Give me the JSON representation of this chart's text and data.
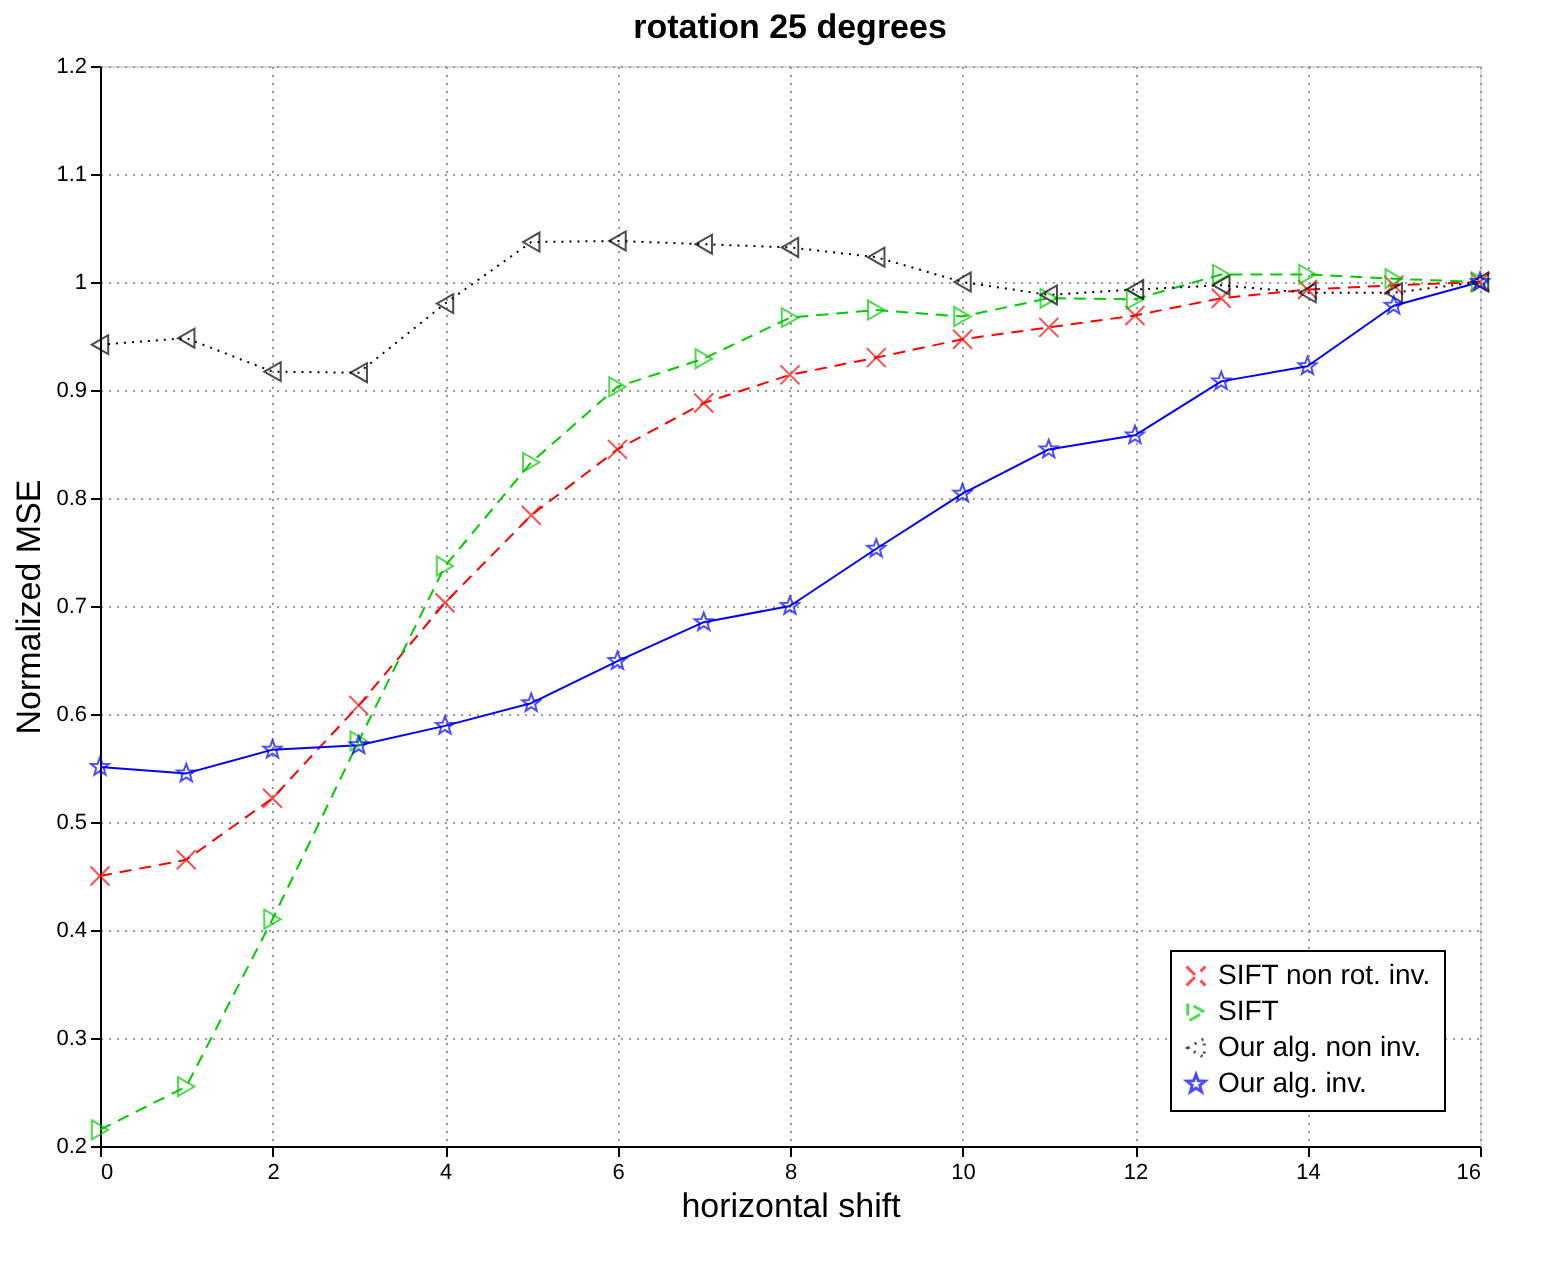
{
  "chart_data": {
    "type": "line",
    "title": "rotation 25 degrees",
    "xlabel": "horizontal shift",
    "ylabel": "Normalized MSE",
    "x": [
      0,
      1,
      2,
      3,
      4,
      5,
      6,
      7,
      8,
      9,
      10,
      11,
      12,
      13,
      14,
      15,
      16
    ],
    "xlim": [
      0,
      16
    ],
    "xticks": [
      0,
      2,
      4,
      6,
      8,
      10,
      12,
      14,
      16
    ],
    "ylim": [
      0.2,
      1.2
    ],
    "yticks": [
      0.2,
      0.3,
      0.4,
      0.5,
      0.6,
      0.7,
      0.8,
      0.9,
      1,
      1.1,
      1.2
    ],
    "grid": true,
    "legend": "bottom right",
    "series": [
      {
        "name": "SIFT non rot. inv.",
        "color": "#ff0000",
        "marker": "cross",
        "line_style": "dashed",
        "values": [
          0.45,
          0.465,
          0.522,
          0.608,
          0.703,
          0.784,
          0.845,
          0.888,
          0.914,
          0.93,
          0.947,
          0.958,
          0.969,
          0.985,
          0.993,
          0.997,
          1.0
        ]
      },
      {
        "name": "SIFT",
        "color": "#00cc00",
        "marker": "triangle-right",
        "line_style": "dashed",
        "values": [
          0.215,
          0.255,
          0.41,
          0.575,
          0.737,
          0.833,
          0.903,
          0.929,
          0.967,
          0.974,
          0.968,
          0.985,
          0.984,
          1.007,
          1.007,
          1.003,
          1.0
        ]
      },
      {
        "name": "Our alg. non inv.",
        "color": "#000000",
        "marker": "triangle-left",
        "line_style": "dotted",
        "values": [
          0.942,
          0.948,
          0.917,
          0.916,
          0.98,
          1.037,
          1.038,
          1.035,
          1.032,
          1.023,
          1.0,
          0.988,
          0.993,
          0.997,
          0.99,
          0.99,
          1.0
        ]
      },
      {
        "name": "Our alg. inv.",
        "color": "#0000ff",
        "marker": "star",
        "line_style": "solid",
        "values": [
          0.551,
          0.545,
          0.567,
          0.571,
          0.589,
          0.61,
          0.649,
          0.685,
          0.7,
          0.753,
          0.804,
          0.845,
          0.858,
          0.908,
          0.922,
          0.978,
          1.0
        ]
      }
    ]
  }
}
